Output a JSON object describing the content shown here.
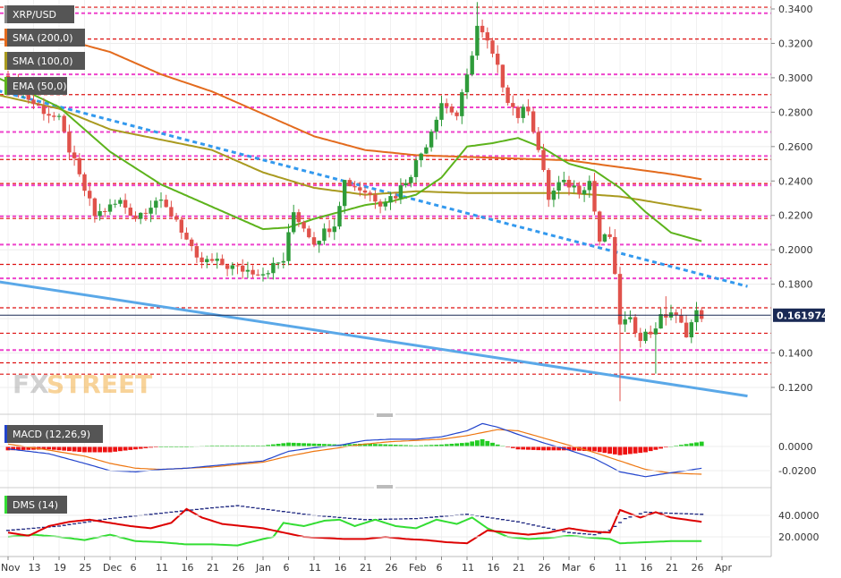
{
  "labels": {
    "symbol": "XRP/USD",
    "sma200": "SMA (200,0)",
    "sma100": "SMA (100,0)",
    "ema50": "EMA (50,0)",
    "macd": "MACD (12,26,9)",
    "dms": "DMS (14)",
    "price_tag": "0.161974"
  },
  "watermark": {
    "part1": "FX",
    "part2": "STREET"
  },
  "colors": {
    "bull": "#2e9b3a",
    "bear": "#e0524b",
    "sma200": "#e36b1e",
    "sma100": "#a99a1f",
    "ema50": "#5db31c",
    "dotted_trend": "#3399ee",
    "solid_trend": "#5aa8e8",
    "resistance_red": "#dd1111",
    "fib_pink": "#ee44cc",
    "macd_line": "#2244cc",
    "signal_line": "#ee7711",
    "hist_pos": "#22cc22",
    "hist_neg": "#ee1111",
    "dms_adx": "#1a237e",
    "dms_plus": "#33dd33",
    "dms_minus": "#dd0000"
  },
  "chart_data": {
    "type": "candlestick",
    "price_axis": {
      "ticks": [
        "0.3400",
        "0.3200",
        "0.3000",
        "0.2800",
        "0.2600",
        "0.2400",
        "0.2200",
        "0.2000",
        "0.1800",
        "0.1400",
        "0.1200"
      ],
      "ylim": [
        0.112,
        0.344
      ],
      "last_price": 0.161974
    },
    "macd_axis": {
      "ticks": [
        "0.0000",
        "-0.0200"
      ],
      "ylim": [
        -0.03,
        0.012
      ]
    },
    "dms_axis": {
      "ticks": [
        "40.0000",
        "20.0000"
      ],
      "ylim": [
        10,
        55
      ]
    },
    "x_axis": {
      "ticks": [
        {
          "i": 0,
          "label": "Nov"
        },
        {
          "i": 5,
          "label": "13"
        },
        {
          "i": 10,
          "label": "19"
        },
        {
          "i": 15,
          "label": "25"
        },
        {
          "i": 20,
          "label": "Dec"
        },
        {
          "i": 25,
          "label": "6"
        },
        {
          "i": 30,
          "label": "11"
        },
        {
          "i": 35,
          "label": "16"
        },
        {
          "i": 40,
          "label": "21"
        },
        {
          "i": 45,
          "label": "26"
        },
        {
          "i": 50,
          "label": "Jan"
        },
        {
          "i": 55,
          "label": "6"
        },
        {
          "i": 60,
          "label": "11"
        },
        {
          "i": 65,
          "label": "16"
        },
        {
          "i": 70,
          "label": "21"
        },
        {
          "i": 75,
          "label": "26"
        },
        {
          "i": 80,
          "label": "Feb"
        },
        {
          "i": 85,
          "label": "6"
        },
        {
          "i": 90,
          "label": "11"
        },
        {
          "i": 95,
          "label": "16"
        },
        {
          "i": 100,
          "label": "21"
        },
        {
          "i": 105,
          "label": "26"
        },
        {
          "i": 110,
          "label": "Mar"
        },
        {
          "i": 115,
          "label": "6"
        },
        {
          "i": 120,
          "label": "11"
        },
        {
          "i": 125,
          "label": "16"
        },
        {
          "i": 130,
          "label": "21"
        },
        {
          "i": 135,
          "label": "26"
        },
        {
          "i": 140,
          "label": "Apr"
        }
      ]
    },
    "horizontal_levels": {
      "red": [
        0.341,
        0.3225,
        0.2902,
        0.2525,
        0.2385,
        0.2182,
        0.1915,
        0.1663,
        0.1515,
        0.1343,
        0.1277
      ],
      "pink": [
        0.3375,
        0.302,
        0.2828,
        0.2685,
        0.2545,
        0.2375,
        0.2195,
        0.203,
        0.1834,
        0.1417
      ]
    },
    "trendlines": {
      "dotted_blue": {
        "from": [
          -2,
          0.2925
        ],
        "to": [
          145,
          0.1787
        ]
      },
      "solid_blue": {
        "from": [
          -2,
          0.1815
        ],
        "to": [
          145,
          0.115
        ]
      }
    },
    "anchors": {
      "close": [
        [
          0,
          0.3
        ],
        [
          5,
          0.285
        ],
        [
          10,
          0.275
        ],
        [
          14,
          0.242
        ],
        [
          17,
          0.22
        ],
        [
          22,
          0.228
        ],
        [
          25,
          0.219
        ],
        [
          29,
          0.229
        ],
        [
          33,
          0.218
        ],
        [
          37,
          0.193
        ],
        [
          40,
          0.193
        ],
        [
          45,
          0.189
        ],
        [
          50,
          0.187
        ],
        [
          54,
          0.194
        ],
        [
          56,
          0.222
        ],
        [
          60,
          0.205
        ],
        [
          64,
          0.216
        ],
        [
          66,
          0.24
        ],
        [
          70,
          0.234
        ],
        [
          73,
          0.228
        ],
        [
          76,
          0.232
        ],
        [
          79,
          0.245
        ],
        [
          82,
          0.262
        ],
        [
          85,
          0.286
        ],
        [
          88,
          0.278
        ],
        [
          90,
          0.3
        ],
        [
          92,
          0.33
        ],
        [
          94,
          0.32
        ],
        [
          96,
          0.305
        ],
        [
          98,
          0.288
        ],
        [
          100,
          0.278
        ],
        [
          102,
          0.283
        ],
        [
          104,
          0.258
        ],
        [
          106,
          0.23
        ],
        [
          108,
          0.238
        ],
        [
          110,
          0.238
        ],
        [
          112,
          0.235
        ],
        [
          114,
          0.24
        ],
        [
          116,
          0.205
        ],
        [
          118,
          0.208
        ],
        [
          120,
          0.158
        ],
        [
          122,
          0.158
        ],
        [
          124,
          0.15
        ],
        [
          126,
          0.152
        ],
        [
          128,
          0.16
        ],
        [
          130,
          0.164
        ],
        [
          133,
          0.152
        ],
        [
          135,
          0.163
        ],
        [
          136,
          0.162
        ]
      ],
      "sma200": [
        [
          -2,
          0.322
        ],
        [
          10,
          0.323
        ],
        [
          20,
          0.315
        ],
        [
          30,
          0.302
        ],
        [
          40,
          0.292
        ],
        [
          50,
          0.279
        ],
        [
          60,
          0.266
        ],
        [
          70,
          0.258
        ],
        [
          80,
          0.255
        ],
        [
          90,
          0.254
        ],
        [
          100,
          0.253
        ],
        [
          110,
          0.252
        ],
        [
          120,
          0.248
        ],
        [
          130,
          0.244
        ],
        [
          136,
          0.241
        ]
      ],
      "sma100": [
        [
          -2,
          0.29
        ],
        [
          10,
          0.282
        ],
        [
          20,
          0.27
        ],
        [
          30,
          0.264
        ],
        [
          40,
          0.258
        ],
        [
          50,
          0.245
        ],
        [
          60,
          0.236
        ],
        [
          70,
          0.232
        ],
        [
          80,
          0.234
        ],
        [
          90,
          0.233
        ],
        [
          100,
          0.233
        ],
        [
          110,
          0.233
        ],
        [
          120,
          0.231
        ],
        [
          130,
          0.226
        ],
        [
          136,
          0.223
        ]
      ],
      "ema50": [
        [
          -2,
          0.3
        ],
        [
          10,
          0.283
        ],
        [
          20,
          0.257
        ],
        [
          30,
          0.238
        ],
        [
          40,
          0.225
        ],
        [
          50,
          0.212
        ],
        [
          55,
          0.213
        ],
        [
          60,
          0.218
        ],
        [
          65,
          0.222
        ],
        [
          70,
          0.226
        ],
        [
          75,
          0.228
        ],
        [
          80,
          0.232
        ],
        [
          85,
          0.242
        ],
        [
          90,
          0.26
        ],
        [
          95,
          0.262
        ],
        [
          100,
          0.265
        ],
        [
          105,
          0.259
        ],
        [
          110,
          0.25
        ],
        [
          115,
          0.246
        ],
        [
          120,
          0.236
        ],
        [
          125,
          0.222
        ],
        [
          130,
          0.21
        ],
        [
          136,
          0.205
        ]
      ],
      "macd": [
        [
          0,
          -0.002
        ],
        [
          8,
          -0.006
        ],
        [
          15,
          -0.014
        ],
        [
          20,
          -0.02
        ],
        [
          25,
          -0.021
        ],
        [
          30,
          -0.019
        ],
        [
          35,
          -0.018
        ],
        [
          40,
          -0.016
        ],
        [
          45,
          -0.014
        ],
        [
          50,
          -0.012
        ],
        [
          55,
          -0.004
        ],
        [
          60,
          -0.001
        ],
        [
          65,
          0.001
        ],
        [
          70,
          0.005
        ],
        [
          75,
          0.006
        ],
        [
          80,
          0.006
        ],
        [
          85,
          0.008
        ],
        [
          90,
          0.013
        ],
        [
          93,
          0.019
        ],
        [
          96,
          0.016
        ],
        [
          100,
          0.01
        ],
        [
          105,
          0.003
        ],
        [
          110,
          -0.003
        ],
        [
          115,
          -0.01
        ],
        [
          120,
          -0.021
        ],
        [
          125,
          -0.025
        ],
        [
          128,
          -0.023
        ],
        [
          133,
          -0.02
        ],
        [
          136,
          -0.018
        ]
      ],
      "signal": [
        [
          0,
          0.002
        ],
        [
          8,
          -0.003
        ],
        [
          15,
          -0.008
        ],
        [
          20,
          -0.014
        ],
        [
          25,
          -0.018
        ],
        [
          30,
          -0.019
        ],
        [
          35,
          -0.018
        ],
        [
          40,
          -0.017
        ],
        [
          45,
          -0.015
        ],
        [
          50,
          -0.013
        ],
        [
          55,
          -0.008
        ],
        [
          60,
          -0.004
        ],
        [
          65,
          -0.001
        ],
        [
          70,
          0.002
        ],
        [
          75,
          0.004
        ],
        [
          80,
          0.005
        ],
        [
          85,
          0.006
        ],
        [
          90,
          0.009
        ],
        [
          96,
          0.014
        ],
        [
          100,
          0.013
        ],
        [
          105,
          0.007
        ],
        [
          110,
          0.001
        ],
        [
          115,
          -0.005
        ],
        [
          120,
          -0.012
        ],
        [
          125,
          -0.019
        ],
        [
          130,
          -0.022
        ],
        [
          136,
          -0.023
        ]
      ],
      "adx": [
        [
          0,
          26
        ],
        [
          10,
          30
        ],
        [
          20,
          37
        ],
        [
          30,
          42
        ],
        [
          40,
          47
        ],
        [
          45,
          49
        ],
        [
          50,
          46
        ],
        [
          55,
          43
        ],
        [
          60,
          40
        ],
        [
          70,
          36
        ],
        [
          80,
          37
        ],
        [
          90,
          41
        ],
        [
          100,
          34
        ],
        [
          110,
          24
        ],
        [
          115,
          22
        ],
        [
          118,
          26
        ],
        [
          121,
          37
        ],
        [
          125,
          43
        ],
        [
          130,
          42
        ],
        [
          136,
          41
        ]
      ],
      "dms_plus": [
        [
          0,
          20
        ],
        [
          5,
          22
        ],
        [
          10,
          20
        ],
        [
          15,
          17
        ],
        [
          20,
          22
        ],
        [
          25,
          16
        ],
        [
          30,
          15
        ],
        [
          35,
          13
        ],
        [
          40,
          13
        ],
        [
          45,
          12
        ],
        [
          50,
          18
        ],
        [
          52,
          20
        ],
        [
          54,
          33
        ],
        [
          58,
          30
        ],
        [
          62,
          35
        ],
        [
          65,
          36
        ],
        [
          68,
          30
        ],
        [
          72,
          36
        ],
        [
          76,
          30
        ],
        [
          80,
          28
        ],
        [
          84,
          36
        ],
        [
          88,
          32
        ],
        [
          91,
          38
        ],
        [
          94,
          28
        ],
        [
          98,
          20
        ],
        [
          102,
          18
        ],
        [
          106,
          19
        ],
        [
          110,
          21
        ],
        [
          115,
          19
        ],
        [
          118,
          18
        ],
        [
          120,
          14
        ],
        [
          125,
          15
        ],
        [
          130,
          16
        ],
        [
          136,
          16
        ]
      ],
      "dms_minus": [
        [
          0,
          24
        ],
        [
          4,
          21
        ],
        [
          8,
          30
        ],
        [
          12,
          34
        ],
        [
          16,
          36
        ],
        [
          20,
          33
        ],
        [
          24,
          30
        ],
        [
          28,
          28
        ],
        [
          32,
          33
        ],
        [
          35,
          46
        ],
        [
          38,
          38
        ],
        [
          42,
          32
        ],
        [
          46,
          30
        ],
        [
          50,
          28
        ],
        [
          54,
          24
        ],
        [
          58,
          20
        ],
        [
          62,
          19
        ],
        [
          66,
          18
        ],
        [
          70,
          18
        ],
        [
          74,
          20
        ],
        [
          78,
          18
        ],
        [
          82,
          17
        ],
        [
          86,
          15
        ],
        [
          90,
          14
        ],
        [
          94,
          26
        ],
        [
          98,
          24
        ],
        [
          102,
          22
        ],
        [
          106,
          24
        ],
        [
          110,
          28
        ],
        [
          114,
          25
        ],
        [
          118,
          24
        ],
        [
          120,
          45
        ],
        [
          124,
          38
        ],
        [
          127,
          43
        ],
        [
          130,
          38
        ],
        [
          136,
          34
        ]
      ]
    },
    "notes_extremes": [
      [
        92,
        0.344
      ],
      [
        120,
        0.112
      ],
      [
        127,
        0.128
      ],
      [
        129,
        0.173
      ]
    ]
  }
}
